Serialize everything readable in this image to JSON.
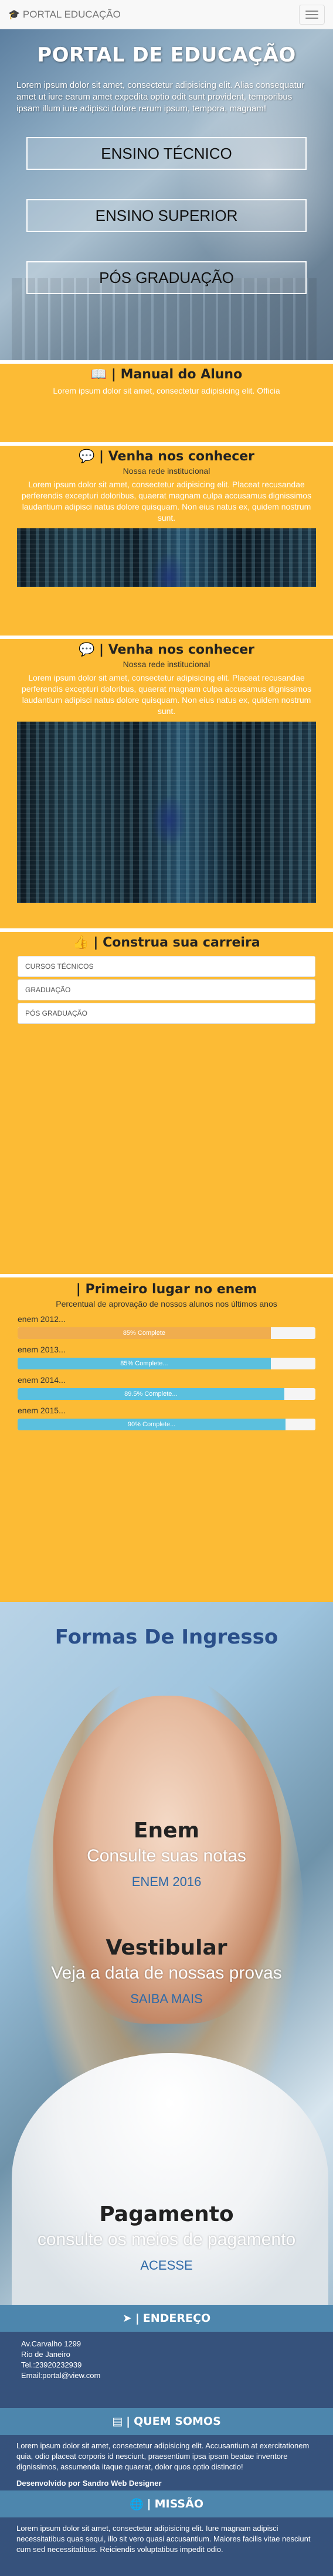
{
  "navbar": {
    "brand": "PORTAL EDUCAÇÃO",
    "brand_icon": "cap-icon",
    "menu_icon": "hamburger-icon"
  },
  "hero": {
    "title": "PORTAL DE EDUCAÇÃO",
    "text": "Lorem ipsum dolor sit amet, consectetur adipisicing elit. Alias consequatur amet ut iure earum amet expedita optio odit sunt provident, temporibus ipsam illum iure adipisci dolore rerum ipsum, tempora, magnam!",
    "buttons": [
      "ENSINO TÉCNICO",
      "ENSINO SUPERIOR",
      "PÓS GRADUAÇÃO"
    ]
  },
  "manual": {
    "title": "Manual do Aluno",
    "icon": "book-icon",
    "text": "Lorem ipsum dolor sit amet, consectetur adipisicing elit. Officia"
  },
  "conhecer": {
    "title": "Venha nos conhecer",
    "icon": "comment-icon",
    "subtitle": "Nossa rede institucional",
    "text": "Lorem ipsum dolor sit amet, consectetur adipisicing elit. Placeat recusandae perferendis excepturi doloribus, quaerat magnam culpa accusamus dignissimos laudantium adipisci natus dolore quisquam. Non eius natus ex, quidem nostrum sunt."
  },
  "conhecer2": {
    "title": "Venha nos conhecer",
    "icon": "comment-icon",
    "subtitle": "Nossa rede institucional",
    "text": "Lorem ipsum dolor sit amet, consectetur adipisicing elit. Placeat recusandae perferendis excepturi doloribus, quaerat magnam culpa accusamus dignissimos laudantium adipisci natus dolore quisquam. Non eius natus ex, quidem nostrum sunt."
  },
  "carreira": {
    "title": "Construa sua carreira",
    "icon": "thumbs-up-icon",
    "items": [
      "CURSOS TÉCNICOS",
      "GRADUAÇÃO",
      "PÓS GRADUAÇÃO"
    ]
  },
  "enem": {
    "title": "Primeiro lugar no enem",
    "subtitle": "Percentual de aprovação de nossos alunos nos últimos anos",
    "items": [
      {
        "label": "enem 2012...",
        "text": "85% Complete",
        "value": 85,
        "color": "#f0ad4e"
      },
      {
        "label": "enem 2013...",
        "text": "85% Complete...",
        "value": 85,
        "color": "#5bc0de"
      },
      {
        "label": "enem 2014...",
        "text": "89.5% Complete...",
        "value": 89.5,
        "color": "#5bc0de"
      },
      {
        "label": "enem 2015...",
        "text": "90% Complete...",
        "value": 90,
        "color": "#5bc0de"
      }
    ]
  },
  "ingresso": {
    "title": "Formas De Ingresso",
    "blocks": [
      {
        "title": "Enem",
        "subtitle": "Consulte suas notas",
        "link": "ENEM 2016"
      },
      {
        "title": "Vestibular",
        "subtitle": "Veja a data de nossas provas",
        "link": "SAIBA MAIS"
      },
      {
        "title": "Pagamento",
        "subtitle": "consulte os meios de pagamento",
        "link": "ACESSE"
      }
    ]
  },
  "footer": {
    "endereco": {
      "title": "Endereço",
      "icon": "location-arrow-icon",
      "lines": [
        "Av.Carvalho 1299",
        "Rio de Janeiro",
        "Tel.:23920232939",
        "Email:portal@view.com"
      ]
    },
    "quem_somos": {
      "title": "Quem Somos",
      "icon": "list-icon",
      "text": "Lorem ipsum dolor sit amet, consectetur adipisicing elit. Accusantium at exercitationem quia, odio placeat corporis id nesciunt, praesentium ipsa ipsam beatae inventore dignissimos, assumenda itaque quaerat, dolor quos optio distinctio!",
      "developer": "Desenvolvido por Sandro Web Designer"
    },
    "missao": {
      "title": "Missão",
      "icon": "globe-icon",
      "text": "Lorem ipsum dolor sit amet, consectetur adipisicing elit. Iure magnam adipisci necessitatibus quas sequi, illo sit vero quasi accusantium. Maiores facilis vitae nesciunt cum sed necessitatibus. Reiciendis voluptatibus impedit odio."
    }
  }
}
